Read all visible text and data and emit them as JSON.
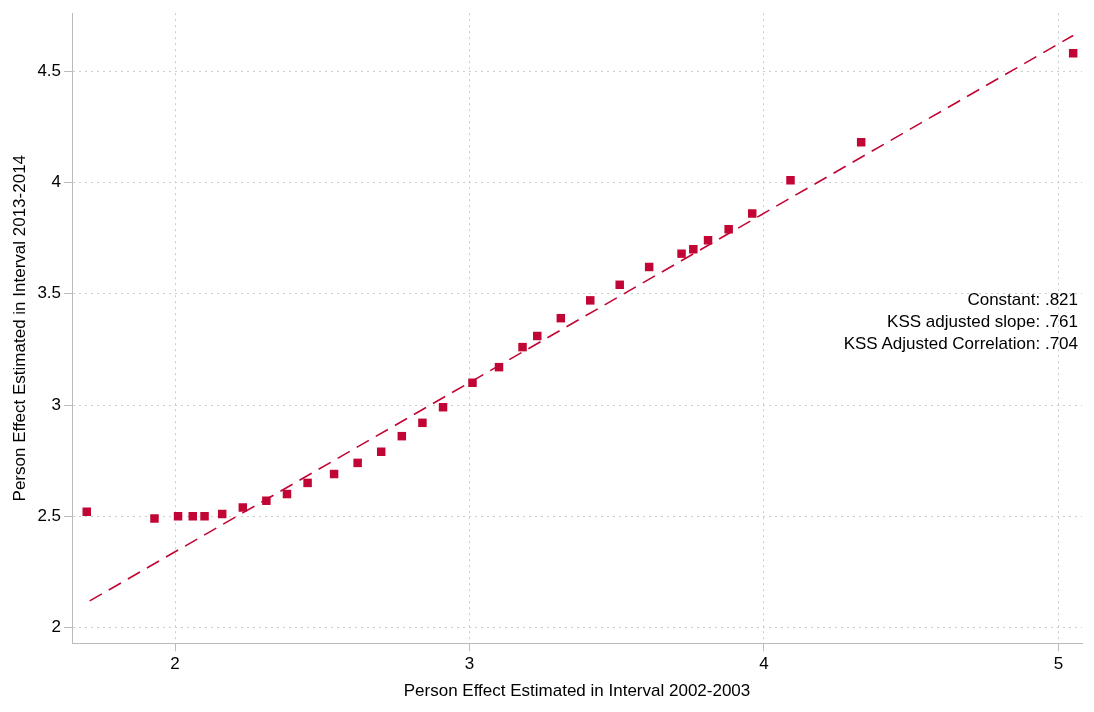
{
  "chart_data": {
    "type": "scatter",
    "xlabel": "Person Effect Estimated in Interval 2002-2003",
    "ylabel": "Person Effect Estimated in Interval 2013-2014",
    "series": [
      {
        "type": "scatter",
        "color": "#c10534",
        "marker": "square",
        "x": [
          1.7,
          1.93,
          2.01,
          2.06,
          2.1,
          2.16,
          2.23,
          2.31,
          2.38,
          2.45,
          2.54,
          2.62,
          2.7,
          2.77,
          2.84,
          2.91,
          3.01,
          3.1,
          3.18,
          3.23,
          3.31,
          3.41,
          3.51,
          3.61,
          3.72,
          3.76,
          3.81,
          3.88,
          3.96,
          4.09,
          4.33,
          5.05
        ],
        "values": [
          2.52,
          2.49,
          2.5,
          2.5,
          2.5,
          2.51,
          2.54,
          2.57,
          2.6,
          2.65,
          2.69,
          2.74,
          2.79,
          2.86,
          2.92,
          2.99,
          3.1,
          3.17,
          3.26,
          3.31,
          3.39,
          3.47,
          3.54,
          3.62,
          3.68,
          3.7,
          3.74,
          3.79,
          3.86,
          4.01,
          4.18,
          4.58
        ]
      },
      {
        "type": "line",
        "color": "#c10534",
        "line_style": "dashed",
        "marker": "none",
        "x": [
          1.71,
          5.05
        ],
        "values": [
          2.12,
          4.66
        ]
      }
    ],
    "grid": true,
    "legend": false,
    "xlim": [
      1.65,
      5.08
    ],
    "xticks": [
      2,
      3,
      4,
      5
    ],
    "ylim": [
      1.93,
      4.76
    ],
    "yticks": [
      2,
      2.5,
      3,
      3.5,
      4,
      4.5
    ],
    "annotations": [
      "Constant: .821",
      "KSS adjusted slope: .761",
      "KSS Adjusted Correlation: .704"
    ]
  }
}
